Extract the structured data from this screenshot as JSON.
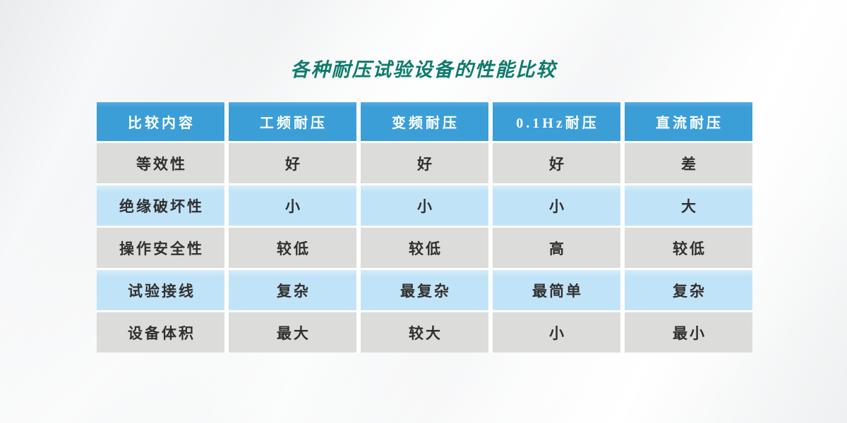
{
  "page": {
    "title": "各种耐压试验设备的性能比较"
  },
  "chart_data": {
    "type": "table",
    "title": "各种耐压试验设备的性能比较",
    "columns": [
      "比较内容",
      "工频耐压",
      "变频耐压",
      "0.1Hz耐压",
      "直流耐压"
    ],
    "rows": [
      [
        "等效性",
        "好",
        "好",
        "好",
        "差"
      ],
      [
        "绝缘破坏性",
        "小",
        "小",
        "小",
        "大"
      ],
      [
        "操作安全性",
        "较低",
        "较低",
        "高",
        "较低"
      ],
      [
        "试验接线",
        "复杂",
        "最复杂",
        "最简单",
        "复杂"
      ],
      [
        "设备体积",
        "最大",
        "较大",
        "小",
        "最小"
      ]
    ],
    "layout": {
      "header_row": true,
      "row_striping": [
        "gray",
        "blue",
        "gray",
        "blue",
        "gray"
      ],
      "cell_gaps_visible": true
    }
  },
  "colors": {
    "header_bg": "#3b9ed7",
    "header_text": "#ffffff",
    "row_gray_bg": "#dcdcda",
    "row_blue_bg": "#c1e3f7",
    "gap": "#ffffff",
    "title_text": "#0e7b6d",
    "cell_text": "#303030"
  }
}
